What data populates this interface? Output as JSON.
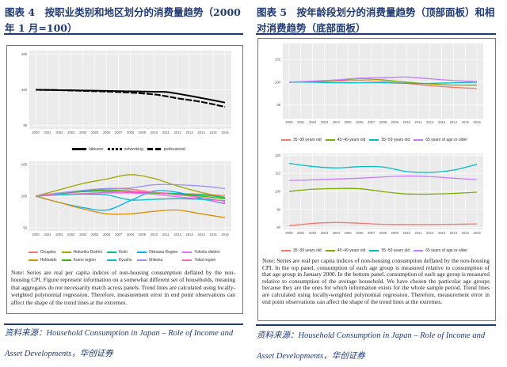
{
  "left": {
    "title": "图表 4　按职业类别和地区划分的消费量趋势（2000 年 1 月=100）",
    "note": "Note: Series are real per capita indices of non-housing consumption deflated by the non-housing CPI. Figure represent information on a somewhat different set of households, meaning that aggregates do not necessarily match across panels. Trend lines are calculated using locally-weighted polynomial regression. Therefore, measurement error in end point observations can affect the shape of the trend lines at the extremes.",
    "source": "资料来源：Household Consumption in Japan – Role of Income and Asset Developments，华创证券"
  },
  "right": {
    "title": "图表 5　按年龄段划分的消费量趋势（顶部面板）和相对消费趋势（底部面板）",
    "note": "Note: Series are real per capita indices of non-housing consumption deflated by the non-housing CPI. In the top panel, consumption of each age group is measured relative to consumption of that age group in January 2000. In the bottom panel, consumption of each age group is measured relative to consumption of the average household. We have chosen the particular age groups because they are the ones for which information exists for the whole sample period. Trend lines are calculated using locally-weighted polynomial regression. Therefore, measurement error in end point observations can affect the shape of the trend lines at the extremes.",
    "source": "资料来源：Household Consumption in Japan – Role of Income and Asset Developments，华创证券"
  },
  "chart_data": [
    {
      "type": "line",
      "xticks": [
        "2000",
        "2001",
        "2002",
        "2003",
        "2004",
        "2005",
        "2006",
        "2007",
        "2008",
        "2009",
        "2010",
        "2011",
        "2012",
        "2013",
        "2014",
        "2015",
        "2016"
      ],
      "x": [
        2000,
        2002,
        2004,
        2006,
        2008,
        2010,
        2011,
        2012,
        2014,
        2016
      ],
      "yticks": [
        95,
        100,
        105
      ],
      "ylim": [
        94.5,
        105.5
      ],
      "legend": "bottom",
      "series": [
        {
          "name": "labourer",
          "color": "#000000",
          "dash": "",
          "values": [
            100,
            99.95,
            99.9,
            99.85,
            99.78,
            99.72,
            99.7,
            99.45,
            98.85,
            98.2
          ]
        },
        {
          "name": "networking",
          "color": "#000000",
          "dash": "3,2",
          "values": [
            100,
            99.95,
            99.85,
            99.75,
            99.6,
            99.35,
            99.1,
            98.8,
            98.3,
            97.6
          ]
        },
        {
          "name": "professional",
          "color": "#000000",
          "dash": "7,3",
          "values": [
            100,
            99.95,
            99.85,
            99.75,
            99.6,
            99.35,
            99.1,
            98.8,
            98.3,
            97.6
          ]
        }
      ]
    },
    {
      "type": "line",
      "xticks": [
        "2000",
        "2001",
        "2002",
        "2003",
        "2004",
        "2005",
        "2006",
        "2007",
        "2008",
        "2009",
        "2010",
        "2011",
        "2012",
        "2013",
        "2014",
        "2015",
        "2016"
      ],
      "x": [
        2000,
        2002,
        2004,
        2006,
        2008,
        2010,
        2012,
        2014,
        2016
      ],
      "yticks": [
        95,
        100,
        105
      ],
      "ylim": [
        94.5,
        105.5
      ],
      "legend": "bottom",
      "series": [
        {
          "name": "Chugoku",
          "color": "#F8766D",
          "values": [
            100,
            100.4,
            100.9,
            101.2,
            101.1,
            100.6,
            100.4,
            100.3,
            100.1
          ]
        },
        {
          "name": "Hokkaido",
          "color": "#D89000",
          "values": [
            100,
            99,
            98,
            97.2,
            97.2,
            97.6,
            97.8,
            97.2,
            96.6
          ]
        },
        {
          "name": "Hokuriku District",
          "color": "#A3A500",
          "values": [
            100,
            101,
            102,
            102.7,
            103.4,
            102.8,
            101.6,
            100.6,
            99.8
          ]
        },
        {
          "name": "Kanto region",
          "color": "#39B600",
          "values": [
            100,
            100.5,
            100.8,
            101,
            100.8,
            100.5,
            100.3,
            100,
            99.6
          ]
        },
        {
          "name": "Kinki",
          "color": "#00BF7D",
          "values": [
            100,
            100.4,
            100.7,
            100.8,
            100.6,
            100.5,
            100.4,
            100.2,
            99.8
          ]
        },
        {
          "name": "Kyushu",
          "color": "#00BFC4",
          "values": [
            100,
            100.2,
            100.3,
            100.2,
            99.4,
            99.5,
            99.6,
            99.5,
            99.3
          ]
        },
        {
          "name": "Okinawa Region",
          "color": "#00B0F6",
          "values": [
            100,
            99,
            98.2,
            97.8,
            99.3,
            100.8,
            100.6,
            99.6,
            98.8
          ]
        },
        {
          "name": "Shikoku",
          "color": "#9590FF",
          "values": [
            100,
            100.5,
            100.9,
            101.2,
            101.3,
            101.8,
            101.8,
            101.6,
            101.2
          ]
        },
        {
          "name": "Tohoku district",
          "color": "#E76BF3",
          "values": [
            100,
            100.2,
            100.4,
            100.5,
            100.5,
            100.3,
            99.9,
            99.5,
            98.9
          ]
        },
        {
          "name": "Tokai region",
          "color": "#FF62BC",
          "values": [
            100,
            100.3,
            100.4,
            100.6,
            100.7,
            100.6,
            100.2,
            99.8,
            99.2
          ]
        }
      ]
    },
    {
      "type": "line",
      "xticks": [
        "2000",
        "2001",
        "2002",
        "2003",
        "2004",
        "2005",
        "2006",
        "2007",
        "2008",
        "2009",
        "2010",
        "2011",
        "2012",
        "2013",
        "2014",
        "2015",
        "2016"
      ],
      "x": [
        2000,
        2002,
        2004,
        2006,
        2008,
        2010,
        2012,
        2014,
        2016
      ],
      "yticks": [
        98,
        100,
        102
      ],
      "ylim": [
        96.8,
        103.4
      ],
      "legend": "bottom",
      "series": [
        {
          "name": "35~39 years old",
          "color": "#F8766D",
          "values": [
            100,
            100.05,
            100.1,
            100.15,
            100.05,
            99.9,
            99.7,
            99.55,
            99.45
          ]
        },
        {
          "name": "45~49 years old",
          "color": "#7CAE00",
          "values": [
            100,
            100.05,
            100.15,
            100.3,
            100.2,
            100,
            99.85,
            99.75,
            99.75
          ]
        },
        {
          "name": "55~59 years old",
          "color": "#00BFC4",
          "values": [
            100,
            100,
            99.95,
            99.95,
            99.95,
            99.9,
            99.9,
            99.95,
            100
          ]
        },
        {
          "name": "65 years of age or older",
          "color": "#C77CFF",
          "values": [
            100,
            100.1,
            100.2,
            100.35,
            100.4,
            100.45,
            100.3,
            100.15,
            100.05
          ]
        }
      ]
    },
    {
      "type": "line",
      "xticks": [
        "2000",
        "2001",
        "2002",
        "2003",
        "2004",
        "2005",
        "2006",
        "2007",
        "2008",
        "2009",
        "2010",
        "2011",
        "2012",
        "2013",
        "2014",
        "2015",
        "2016"
      ],
      "x": [
        2000,
        2002,
        2004,
        2006,
        2008,
        2010,
        2012,
        2014,
        2016
      ],
      "yticks": [
        80,
        90,
        100,
        110,
        120
      ],
      "ylim": [
        79,
        121
      ],
      "legend": "bottom",
      "series": [
        {
          "name": "35~39 years old",
          "color": "#F8766D",
          "values": [
            81,
            82.3,
            82.8,
            82.4,
            81.8,
            81.7,
            81.7,
            81.8,
            82
          ]
        },
        {
          "name": "45~49 years old",
          "color": "#7CAE00",
          "values": [
            100,
            101.2,
            101.6,
            101.5,
            99.9,
            98.6,
            98.5,
            98.9,
            99.6
          ]
        },
        {
          "name": "55~59 years old",
          "color": "#00BFC4",
          "values": [
            115.5,
            113.8,
            113,
            113.7,
            113.5,
            111,
            110.5,
            111.8,
            115
          ]
        },
        {
          "name": "65 years of age or older",
          "color": "#C77CFF",
          "values": [
            106,
            106.4,
            106.8,
            107.3,
            108,
            108.5,
            108.2,
            107.3,
            106.5
          ]
        }
      ]
    }
  ]
}
